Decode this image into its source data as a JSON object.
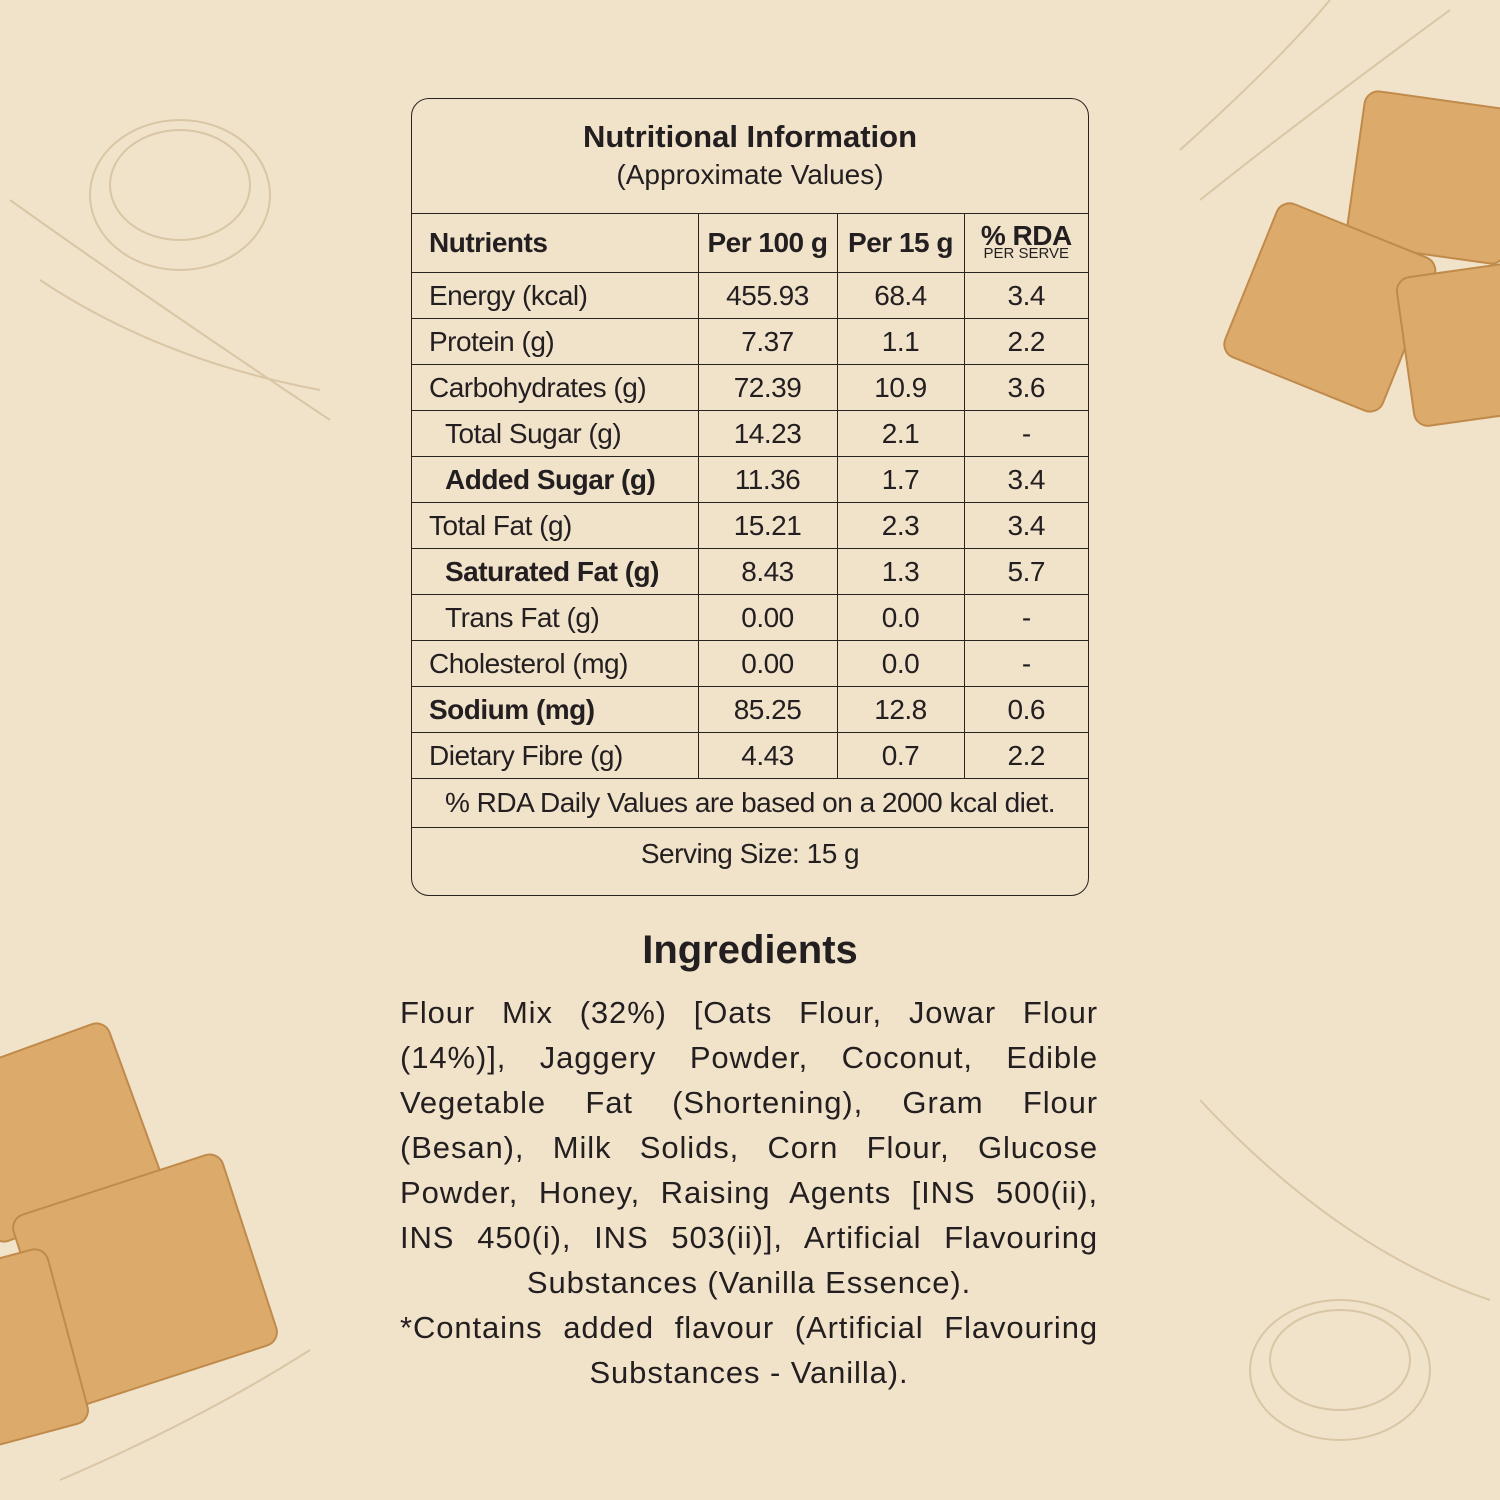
{
  "nutrition": {
    "title": "Nutritional Information",
    "subtitle": "(Approximate Values)",
    "header": [
      "Nutrients",
      "Per 100 g",
      "Per 15 g",
      "% RDA"
    ],
    "header_note": "PER SERVE",
    "rows": [
      {
        "cells": [
          "Energy (kcal)",
          "455.93",
          "68.4",
          "3.4"
        ]
      },
      {
        "cells": [
          "Protein (g)",
          "7.37",
          "1.1",
          "2.2"
        ]
      },
      {
        "cells": [
          "Carbohydrates (g)",
          "72.39",
          "10.9",
          "3.6"
        ]
      },
      {
        "cells": [
          "Total Sugar (g)",
          "14.23",
          "2.1",
          "-"
        ],
        "indent": true
      },
      {
        "cells": [
          "Added Sugar (g)",
          "11.36",
          "1.7",
          "3.4"
        ],
        "indent": true,
        "bold": true
      },
      {
        "cells": [
          "Total Fat (g)",
          "15.21",
          "2.3",
          "3.4"
        ]
      },
      {
        "cells": [
          "Saturated Fat (g)",
          "8.43",
          "1.3",
          "5.7"
        ],
        "indent": true,
        "bold": true
      },
      {
        "cells": [
          "Trans Fat (g)",
          "0.00",
          "0.0",
          "-"
        ],
        "indent": true
      },
      {
        "cells": [
          "Cholesterol (mg)",
          "0.00",
          "0.0",
          "-"
        ]
      },
      {
        "cells": [
          "Sodium (mg)",
          "85.25",
          "12.8",
          "0.6"
        ],
        "bold": true
      },
      {
        "cells": [
          "Dietary Fibre (g)",
          "4.43",
          "0.7",
          "2.2"
        ]
      }
    ],
    "footnote": "% RDA Daily Values are based on a 2000 kcal diet.",
    "serving": "Serving Size: 15 g"
  },
  "ingredients": {
    "title": "Ingredients",
    "paragraphs": [
      "Flour Mix (32%) [Oats Flour, Jowar Flour (14%)], Jaggery Powder, Coconut, Edible Vegetable Fat (Shortening), Gram Flour (Besan), Milk Solids, Corn Flour, Glucose Powder, Honey, Raising Agents [INS 500(ii), INS 450(i), INS 503(ii)], Artificial Flavouring Substances (Vanilla Essence).",
      "*Contains added flavour (Artificial Flavouring Substances - Vanilla)."
    ]
  }
}
